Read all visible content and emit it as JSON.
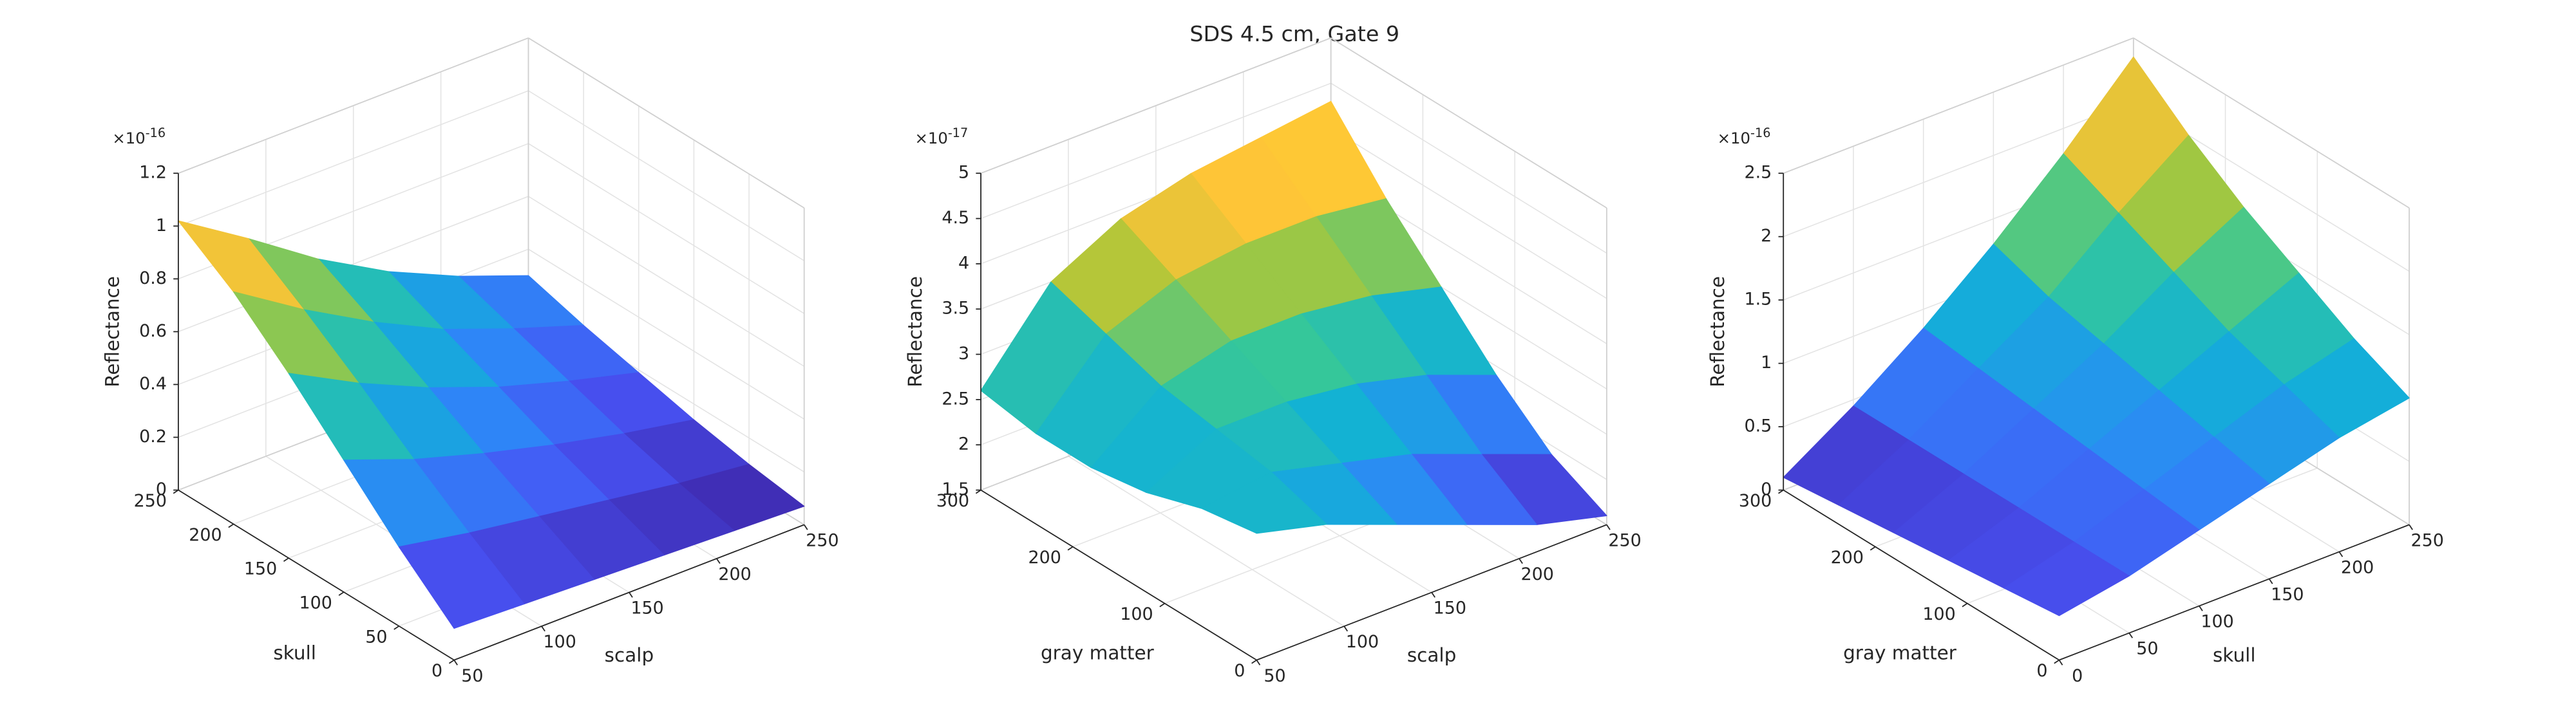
{
  "title": "SDS 4.5 cm, Gate 9",
  "chart_data": [
    {
      "type": "surface",
      "xlabel": "scalp",
      "ylabel": "skull",
      "zlabel": "Reflectance",
      "z_multiplier": {
        "base": "×10",
        "exponent": "-16"
      },
      "x": [
        50,
        90,
        130,
        170,
        210,
        250
      ],
      "y": [
        0,
        50,
        100,
        150,
        200,
        250
      ],
      "values": [
        [
          0.12,
          0.11,
          0.1,
          0.09,
          0.08,
          0.07
        ],
        [
          0.3,
          0.25,
          0.21,
          0.17,
          0.13,
          0.1
        ],
        [
          0.5,
          0.4,
          0.32,
          0.25,
          0.19,
          0.14
        ],
        [
          0.7,
          0.56,
          0.44,
          0.34,
          0.26,
          0.19
        ],
        [
          0.88,
          0.71,
          0.56,
          0.43,
          0.33,
          0.24
        ],
        [
          1.02,
          0.85,
          0.67,
          0.52,
          0.4,
          0.3
        ]
      ],
      "xlim": [
        50,
        250
      ],
      "ylim": [
        0,
        250
      ],
      "zlim": [
        0,
        1.2
      ],
      "xticks": [
        50,
        100,
        150,
        200,
        250
      ],
      "yticks": [
        0,
        50,
        100,
        150,
        200,
        250
      ],
      "zticks": [
        0,
        0.2,
        0.4,
        0.6,
        0.8,
        1,
        1.2
      ],
      "grid": true,
      "colormap": "parula"
    },
    {
      "type": "surface",
      "xlabel": "scalp",
      "ylabel": "gray matter",
      "zlabel": "Reflectance",
      "z_multiplier": {
        "base": "×10",
        "exponent": "-17"
      },
      "x": [
        50,
        90,
        130,
        170,
        210,
        250
      ],
      "y": [
        0,
        60,
        120,
        180,
        240,
        300
      ],
      "values": [
        [
          2.9,
          2.7,
          2.4,
          2.1,
          1.8,
          1.6
        ],
        [
          2.8,
          2.9,
          2.7,
          2.5,
          2.2,
          1.9
        ],
        [
          2.6,
          3.0,
          3.0,
          2.9,
          2.7,
          2.4
        ],
        [
          2.5,
          3.1,
          3.3,
          3.3,
          3.2,
          3.0
        ],
        [
          2.5,
          3.3,
          3.6,
          3.7,
          3.7,
          3.6
        ],
        [
          2.6,
          3.5,
          3.9,
          4.1,
          4.2,
          4.3
        ]
      ],
      "xlim": [
        50,
        250
      ],
      "ylim": [
        0,
        300
      ],
      "zlim": [
        1.5,
        5
      ],
      "xticks": [
        50,
        100,
        150,
        200,
        250
      ],
      "yticks": [
        0,
        100,
        200,
        300
      ],
      "zticks": [
        1.5,
        2,
        2.5,
        3,
        3.5,
        4,
        4.5,
        5
      ],
      "grid": true,
      "colormap": "parula"
    },
    {
      "type": "surface",
      "xlabel": "skull",
      "ylabel": "gray matter",
      "zlabel": "Reflectance",
      "z_multiplier": {
        "base": "×10",
        "exponent": "-16"
      },
      "x": [
        0,
        50,
        100,
        150,
        200,
        250
      ],
      "y": [
        0,
        60,
        120,
        180,
        240,
        300
      ],
      "values": [
        [
          0.35,
          0.45,
          0.6,
          0.75,
          0.9,
          1.0
        ],
        [
          0.3,
          0.45,
          0.65,
          0.85,
          1.05,
          1.2
        ],
        [
          0.25,
          0.45,
          0.7,
          0.95,
          1.2,
          1.45
        ],
        [
          0.2,
          0.45,
          0.75,
          1.05,
          1.4,
          1.7
        ],
        [
          0.15,
          0.45,
          0.8,
          1.15,
          1.6,
          2.0
        ],
        [
          0.1,
          0.45,
          0.85,
          1.3,
          1.8,
          2.35
        ]
      ],
      "xlim": [
        0,
        250
      ],
      "ylim": [
        0,
        300
      ],
      "zlim": [
        0,
        2.5
      ],
      "xticks": [
        0,
        50,
        100,
        150,
        200,
        250
      ],
      "yticks": [
        0,
        100,
        200,
        300
      ],
      "zticks": [
        0,
        0.5,
        1,
        1.5,
        2,
        2.5
      ],
      "grid": true,
      "colormap": "parula"
    }
  ]
}
